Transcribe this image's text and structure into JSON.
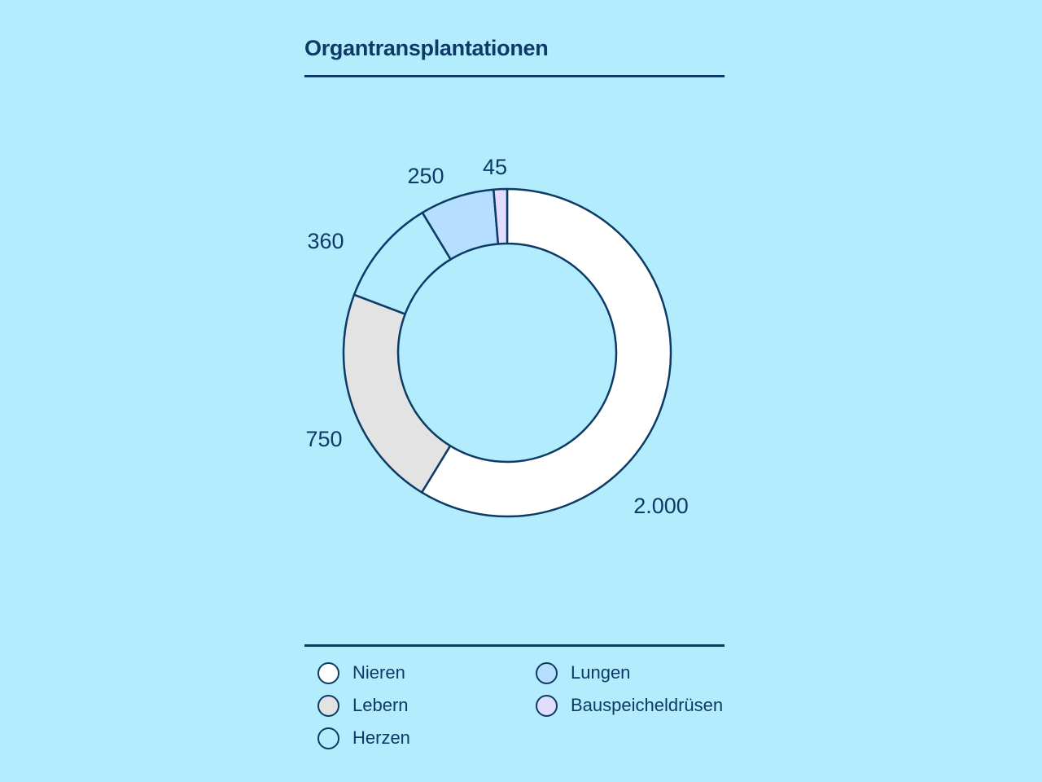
{
  "title": "Organtransplantationen",
  "chart_data": {
    "type": "pie",
    "variant": "donut",
    "categories": [
      "Nieren",
      "Lebern",
      "Herzen",
      "Lungen",
      "Bauspeicheldrüsen"
    ],
    "values": [
      2000,
      750,
      360,
      250,
      45
    ],
    "value_labels": [
      "2.000",
      "750",
      "360",
      "250",
      "45"
    ],
    "colors": [
      "#ffffff",
      "#e3e3e3",
      "#b3ecfd",
      "#b5deff",
      "#e2dcff"
    ],
    "legend_placement": "bottom",
    "start_angle": "top",
    "direction": "clockwise"
  },
  "legend": {
    "items": [
      {
        "label": "Nieren",
        "color": "#ffffff"
      },
      {
        "label": "Lebern",
        "color": "#e3e3e3"
      },
      {
        "label": "Herzen",
        "color": "#b3ecfd"
      },
      {
        "label": "Lungen",
        "color": "#b5deff"
      },
      {
        "label": "Bauspeicheldrüsen",
        "color": "#e2dcff"
      }
    ]
  },
  "colors": {
    "background": "#b3ecfd",
    "ink": "#0d3a66"
  }
}
